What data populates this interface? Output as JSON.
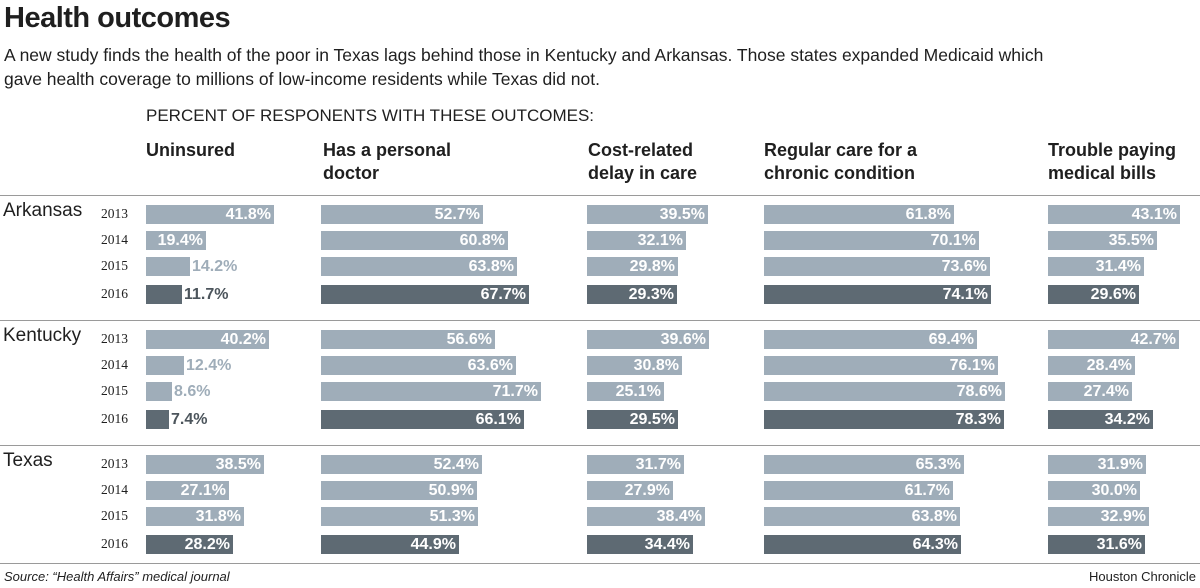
{
  "headline": "Health outcomes",
  "subhead": "A new study finds the health of the poor in Texas lags behind those in Kentucky and Arkansas. Those states expanded Medicaid which gave health coverage to millions of low-income residents while Texas did not.",
  "section_label": "PERCENT OF RESPONENTS WITH THESE OUTCOMES:",
  "source": "Source: “Health Affairs” medical journal",
  "credit": "Houston Chronicle",
  "colors": {
    "light_bar": "#9fadb9",
    "dark_bar": "#5e6a73",
    "rule": "#9a9a9a"
  },
  "chart_data": {
    "type": "bar",
    "orientation": "horizontal",
    "years": [
      "2013",
      "2014",
      "2015",
      "2016"
    ],
    "highlight_year": "2016",
    "metrics": [
      {
        "label": "Uninsured"
      },
      {
        "label": "Has a personal doctor"
      },
      {
        "label": "Cost-related delay in care"
      },
      {
        "label": "Regular care for a chronic condition"
      },
      {
        "label": "Trouble paying medical bills"
      }
    ],
    "states": [
      {
        "name": "Arkansas",
        "values": [
          [
            41.8,
            19.4,
            14.2,
            11.7
          ],
          [
            52.7,
            60.8,
            63.8,
            67.7
          ],
          [
            39.5,
            32.1,
            29.8,
            29.3
          ],
          [
            61.8,
            70.1,
            73.6,
            74.1
          ],
          [
            43.1,
            35.5,
            31.4,
            29.6
          ]
        ],
        "labels": [
          [
            "41.8%",
            "19.4%",
            "14.2%",
            "11.7%"
          ],
          [
            "52.7%",
            "60.8%",
            "63.8%",
            "67.7%"
          ],
          [
            "39.5%",
            "32.1%",
            "29.8%",
            "29.3%"
          ],
          [
            "61.8%",
            "70.1%",
            "73.6%",
            "74.1%"
          ],
          [
            "43.1%",
            "35.5%",
            "31.4%",
            "29.6%"
          ]
        ]
      },
      {
        "name": "Kentucky",
        "values": [
          [
            40.2,
            12.4,
            8.6,
            7.4
          ],
          [
            56.6,
            63.6,
            71.7,
            66.1
          ],
          [
            39.6,
            30.8,
            25.1,
            29.5
          ],
          [
            69.4,
            76.1,
            78.6,
            78.3
          ],
          [
            42.7,
            28.4,
            27.4,
            34.2
          ]
        ],
        "labels": [
          [
            "40.2%",
            "12.4%",
            "8.6%",
            "7.4%"
          ],
          [
            "56.6%",
            "63.6%",
            "71.7%",
            "66.1%"
          ],
          [
            "39.6%",
            "30.8%",
            "25.1%",
            "29.5%"
          ],
          [
            "69.4%",
            "76.1%",
            "78.6%",
            "78.3%"
          ],
          [
            "42.7%",
            "28.4%",
            "27.4%",
            "34.2%"
          ]
        ]
      },
      {
        "name": "Texas",
        "values": [
          [
            38.5,
            27.1,
            31.8,
            28.2
          ],
          [
            52.4,
            50.9,
            51.3,
            44.9
          ],
          [
            31.7,
            27.9,
            38.4,
            34.4
          ],
          [
            65.3,
            61.7,
            63.8,
            64.3
          ],
          [
            31.9,
            30.0,
            32.9,
            31.6
          ]
        ],
        "labels": [
          [
            "38.5%",
            "27.1%",
            "31.8%",
            "28.2%"
          ],
          [
            "52.4%",
            "50.9%",
            "51.3%",
            "44.9%"
          ],
          [
            "31.7%",
            "27.9%",
            "38.4%",
            "34.4%"
          ],
          [
            "65.3%",
            "61.7%",
            "63.8%",
            "64.3%"
          ],
          [
            "31.9%",
            "30.0%",
            "32.9%",
            "31.6%"
          ]
        ]
      }
    ]
  }
}
